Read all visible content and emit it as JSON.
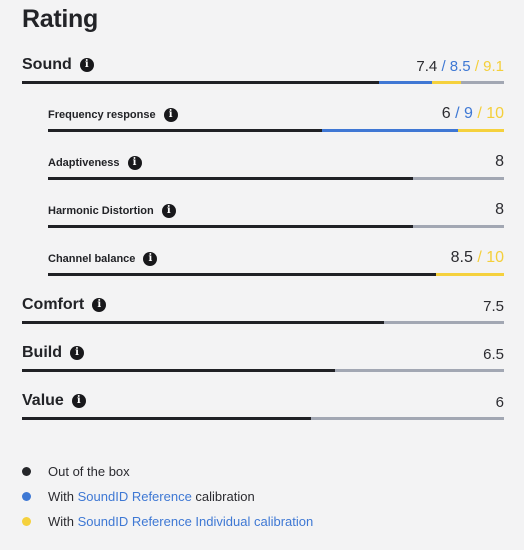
{
  "title": "Rating",
  "colors": {
    "out_of_box": "#202125",
    "reference": "#3f77d4",
    "individual": "#f5d13d",
    "track": "#a2a7b3"
  },
  "rows": [
    {
      "label": "Sound",
      "score": "7.4",
      "score_blue": "/ 8.5",
      "score_yellow": "/ 9.1",
      "max": 10,
      "value": 7.4,
      "value_blue": 8.5,
      "value_yellow": 9.1
    },
    {
      "label": "Frequency response",
      "score": "6",
      "score_blue": "/ 9",
      "score_yellow": "/ 10",
      "max": 10,
      "value": 6,
      "value_blue": 9,
      "value_yellow": 10
    },
    {
      "label": "Adaptiveness",
      "score": "8",
      "max": 10,
      "value": 8
    },
    {
      "label": "Harmonic Distortion",
      "score": "8",
      "max": 10,
      "value": 8
    },
    {
      "label": "Channel balance",
      "score": "8.5",
      "score_yellow": "/ 10",
      "max": 10,
      "value": 8.5,
      "value_yellow": 10
    },
    {
      "label": "Comfort",
      "score": "7.5",
      "max": 10,
      "value": 7.5
    },
    {
      "label": "Build",
      "score": "6.5",
      "max": 10,
      "value": 6.5
    },
    {
      "label": "Value",
      "score": "6",
      "max": 10,
      "value": 6
    }
  ],
  "info_glyph": "i",
  "legend": [
    {
      "prefix": "Out of the box"
    },
    {
      "prefix": "With ",
      "link": "SoundID Reference",
      "suffix": " calibration"
    },
    {
      "prefix": "With ",
      "link": "SoundID Reference Individual",
      "suffix": " calibration"
    }
  ]
}
